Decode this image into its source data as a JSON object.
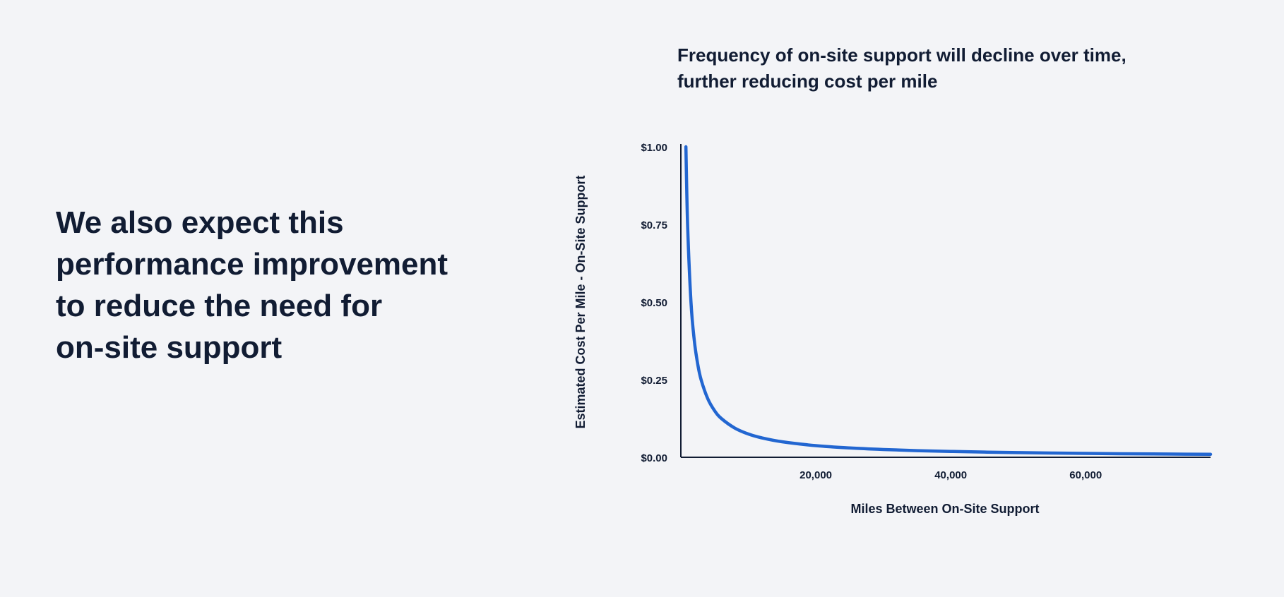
{
  "headline": {
    "lines": [
      "We also expect this",
      "performance improvement",
      "to reduce the need for",
      "on-site support"
    ]
  },
  "chart_data": {
    "type": "line",
    "title_lines": [
      "Frequency of on-site support will decline over time,",
      "further reducing cost per mile"
    ],
    "xlabel": "Miles Between On-Site Support",
    "ylabel": "Estimated Cost Per Mile - On-Site Support",
    "xlim": [
      0,
      78500
    ],
    "ylim": [
      0,
      1.0
    ],
    "x_ticks": [
      {
        "value": 20000,
        "label": "20,000"
      },
      {
        "value": 40000,
        "label": "40,000"
      },
      {
        "value": 60000,
        "label": "60,000"
      }
    ],
    "y_ticks": [
      {
        "value": 0,
        "label": "$0.00"
      },
      {
        "value": 0.25,
        "label": "$0.25"
      },
      {
        "value": 0.5,
        "label": "$0.50"
      },
      {
        "value": 0.75,
        "label": "$0.75"
      },
      {
        "value": 1.0,
        "label": "$1.00"
      }
    ],
    "grid": false,
    "legend": false,
    "series": [
      {
        "color": "#2266d1",
        "x": [
          750,
          1000,
          1500,
          2000,
          2500,
          3000,
          4000,
          5000,
          6000,
          8000,
          10000,
          12000,
          15000,
          20000,
          25000,
          30000,
          35000,
          40000,
          45000,
          50000,
          55000,
          60000,
          65000,
          70000,
          75000,
          78500
        ],
        "y": [
          1.0,
          0.75,
          0.5,
          0.375,
          0.3,
          0.25,
          0.188,
          0.15,
          0.125,
          0.094,
          0.075,
          0.0625,
          0.05,
          0.0375,
          0.03,
          0.025,
          0.0214,
          0.0188,
          0.0167,
          0.015,
          0.0136,
          0.0125,
          0.0115,
          0.0107,
          0.01,
          0.0096
        ]
      }
    ]
  }
}
